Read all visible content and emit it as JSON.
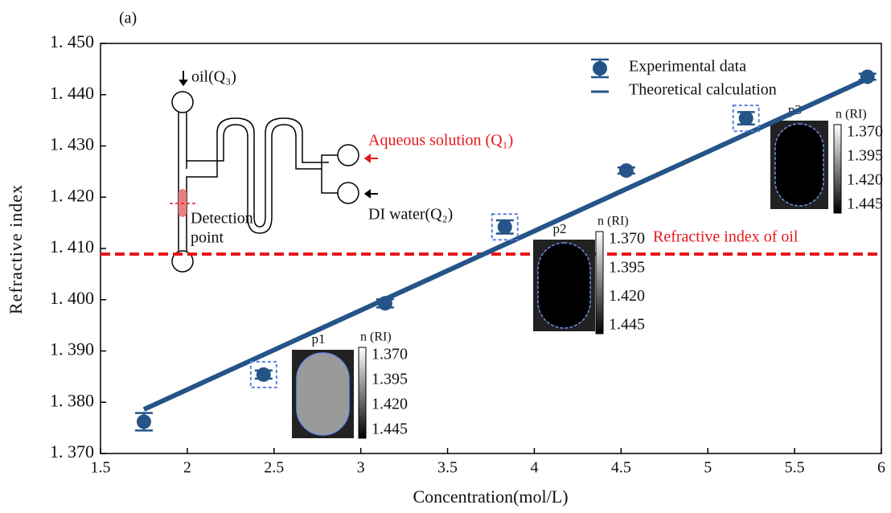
{
  "chart_data": {
    "type": "scatter",
    "panel_label": "(a)",
    "x_label": "Concentration(mol/L)",
    "y_label": "Refractive index",
    "xlim": [
      1.5,
      6
    ],
    "ylim": [
      1.37,
      1.45
    ],
    "xticks": [
      1.5,
      2,
      2.5,
      3,
      3.5,
      4,
      4.5,
      5,
      5.5,
      6
    ],
    "yticks": [
      {
        "value": 1.37,
        "label": "1. 370"
      },
      {
        "value": 1.38,
        "label": "1. 380"
      },
      {
        "value": 1.39,
        "label": "1. 390"
      },
      {
        "value": 1.4,
        "label": "1. 400"
      },
      {
        "value": 1.41,
        "label": "1. 410"
      },
      {
        "value": 1.42,
        "label": "1. 420"
      },
      {
        "value": 1.43,
        "label": "1. 430"
      },
      {
        "value": 1.44,
        "label": "1. 440"
      },
      {
        "value": 1.45,
        "label": "1. 450"
      }
    ],
    "series": [
      {
        "name": "Experimental data",
        "color": "#245488",
        "x": [
          1.75,
          2.44,
          3.14,
          3.83,
          4.53,
          5.22,
          5.92
        ],
        "values": [
          1.3762,
          1.3854,
          1.3993,
          1.4142,
          1.4252,
          1.4354,
          1.4435
        ],
        "errors": [
          0.0017,
          0.0008,
          0.0008,
          0.0013,
          0.0006,
          0.0012,
          0.0006
        ],
        "highlighted": [
          1,
          3,
          5
        ]
      },
      {
        "name": "Theoretical calculation",
        "color": "#245488",
        "x": [
          1.75,
          5.92
        ],
        "values": [
          1.3786,
          1.4431
        ]
      }
    ],
    "reference_line": {
      "label": "Refractive index of oil",
      "value": 1.4089,
      "color": "#e8161b"
    },
    "insets": [
      {
        "label": "p1",
        "colorbar_title": "n (RI)",
        "colorbar_labels": [
          "1.370",
          "1.395",
          "1.420",
          "1.445"
        ]
      },
      {
        "label": "p2",
        "colorbar_title": "n (RI)",
        "colorbar_labels": [
          "1.370",
          "1.395",
          "1.420",
          "1.445"
        ]
      },
      {
        "label": "p3",
        "colorbar_title": "n (RI)",
        "colorbar_labels": [
          "1.370",
          "1.395",
          "1.420",
          "1.445"
        ]
      }
    ],
    "diagram": {
      "oil": "oil(Q₃)",
      "aqueous": "Aqueous solution (Q₁)",
      "water": "DI water(Q₂)",
      "detection": [
        "Detection",
        "point"
      ]
    }
  }
}
